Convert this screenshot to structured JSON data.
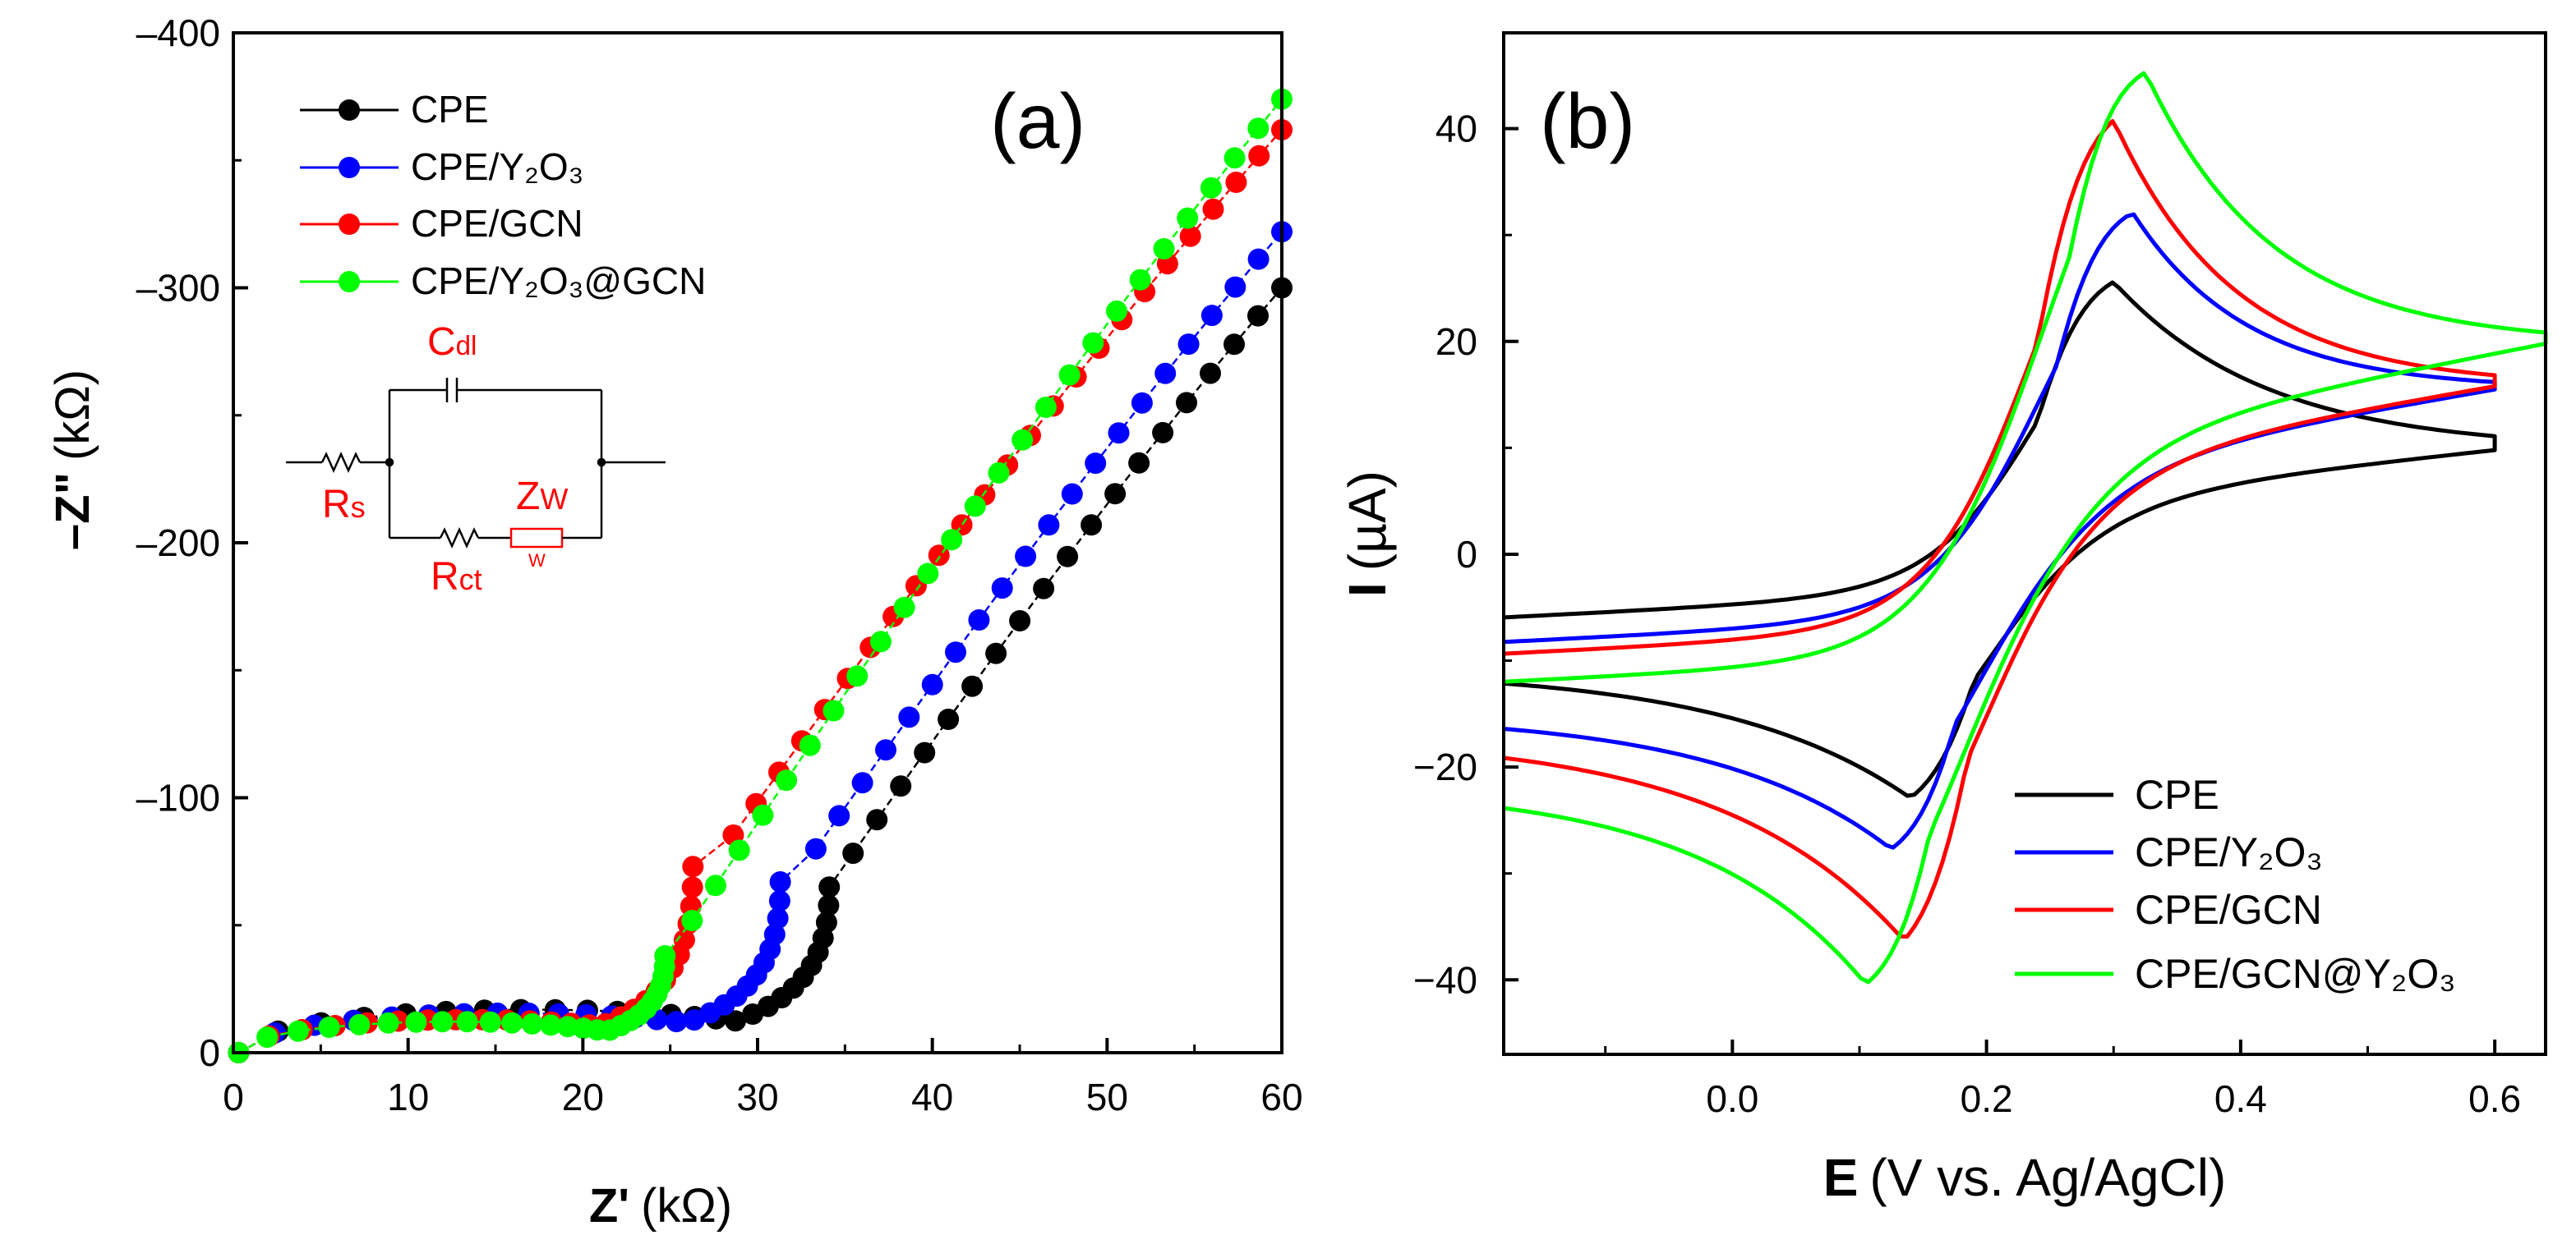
{
  "chart_data": [
    {
      "panel": "a",
      "type": "scatter",
      "panel_label": "(a)",
      "xlabel": "Z'",
      "xlabel_unit": "(kΩ)",
      "ylabel": "–Z\"",
      "ylabel_unit": "(kΩ)",
      "xlim": [
        0,
        60
      ],
      "ylim": [
        0,
        -400
      ],
      "xticks": [
        0,
        10,
        20,
        30,
        40,
        50,
        60
      ],
      "yticks": [
        0,
        -100,
        -200,
        -300,
        -400
      ],
      "ytick_labels": [
        "0",
        "–100",
        "–200",
        "–300",
        "–400"
      ],
      "legend_position": "top-left",
      "circuit": {
        "cdl": "C",
        "cdl_sub": "dl",
        "rs": "R",
        "rs_sub": "s",
        "rct": "R",
        "rct_sub": "ct",
        "zw": "Z",
        "zw_sub": "W",
        "w_box": "W"
      },
      "series": [
        {
          "name": "CPE",
          "color": "#000000",
          "rs": 0.3,
          "semicircle_end": 34.1,
          "rct_radius": 16.9,
          "tail_start": [
            34.1,
            -65
          ],
          "tail_end": [
            60,
            -300
          ]
        },
        {
          "name": "CPE/Y₂O₃",
          "color": "#0000ff",
          "rs": 0.3,
          "semicircle_end": 32.0,
          "rct_radius": 15.5,
          "tail_start": [
            32.0,
            -67
          ],
          "tail_end": [
            60,
            -322
          ]
        },
        {
          "name": "CPE/GCN",
          "color": "#ff0000",
          "rs": 0.3,
          "semicircle_end": 27.3,
          "rct_radius": 13.0,
          "tail_start": [
            27.3,
            -73
          ],
          "tail_end": [
            60,
            -362
          ]
        },
        {
          "name": "CPE/Y₂O₃@GCN",
          "color": "#00ff00",
          "rs": 0.3,
          "semicircle_end": 24.9,
          "rct_radius": 12.2,
          "tail_start": [
            24.9,
            -38
          ],
          "tail_end": [
            60,
            -374
          ]
        }
      ]
    },
    {
      "panel": "b",
      "type": "line",
      "panel_label": "(b)",
      "xlabel": "E",
      "xlabel_unit": "(V vs. Ag/AgCl)",
      "ylabel": "I",
      "ylabel_unit": "(µA)",
      "xlim": [
        -0.18,
        0.64
      ],
      "ylim": [
        -47,
        49
      ],
      "xticks": [
        0.0,
        0.2,
        0.4,
        0.6
      ],
      "xtick_labels": [
        "0.0",
        "0.2",
        "0.4",
        "0.6"
      ],
      "yticks": [
        -40,
        -20,
        0,
        20,
        40
      ],
      "ytick_labels": [
        "−40",
        "−20",
        "0",
        "20",
        "40"
      ],
      "legend_position": "bottom-right",
      "series": [
        {
          "name": "CPE",
          "color": "#000000",
          "anodic_peak": [
            0.3,
            25.6
          ],
          "cathodic_peak": [
            0.14,
            -22.9
          ],
          "vertex_end": [
            0.6,
            9.8
          ],
          "start": [
            -0.18,
            -10.8
          ]
        },
        {
          "name": "CPE/Y₂O₃",
          "color": "#0000ff",
          "anodic_peak": [
            0.315,
            32.1
          ],
          "cathodic_peak": [
            0.125,
            -27.7
          ],
          "vertex_end": [
            0.6,
            15.5
          ],
          "start": [
            -0.18,
            -15.0
          ]
        },
        {
          "name": "CPE/GCN",
          "color": "#ff0000",
          "anodic_peak": [
            0.3,
            40.8
          ],
          "cathodic_peak": [
            0.135,
            -36.3
          ],
          "vertex_end": [
            0.6,
            15.8
          ],
          "start": [
            -0.18,
            -17.0
          ]
        },
        {
          "name": "CPE/GCN@Y₂O₃",
          "color": "#00ff00",
          "anodic_peak": [
            0.325,
            45.3
          ],
          "cathodic_peak": [
            0.105,
            -40.4
          ],
          "vertex_end": [
            0.64,
            19.8
          ],
          "start": [
            -0.18,
            -21.8
          ]
        }
      ]
    }
  ]
}
